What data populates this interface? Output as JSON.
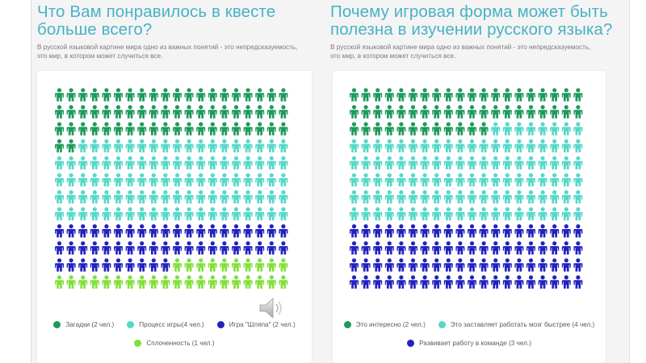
{
  "left": {
    "title": "Что Вам понравилось в квесте больше всего?",
    "subtitle": "В русской языковой картине мира одно из важных понятий - это непредсказуемость, это мир, в котором может случиться все."
  },
  "right": {
    "title": "Почему игровая форма может быть полезна в изучении русского языка?",
    "subtitle": "В русской языковой картине мира одно из важных понятий - это непредсказуемость, это мир, в котором может случиться все."
  },
  "colors": {
    "dark_green": "#1e9a5c",
    "teal": "#55d8c8",
    "blue": "#2222c0",
    "lime": "#80e038"
  },
  "speaker_icon": "speaker-icon",
  "chart_data": [
    {
      "type": "pictogram",
      "grid": {
        "rows": 12,
        "cols": 20
      },
      "series": [
        {
          "name": "Загадки (2 чел.)",
          "color": "#1e9a5c",
          "count": 62
        },
        {
          "name": "Процесс игры(4 чел.)",
          "color": "#55d8c8",
          "count": 98
        },
        {
          "name": "Игра \"Шляпа\" (2 чел.)",
          "color": "#2222c0",
          "count": 50
        },
        {
          "name": "Сплоченность (1 чел.)",
          "color": "#80e038",
          "count": 30
        }
      ],
      "legend": [
        [
          "Загадки (2 чел.)",
          "Процесс игры(4 чел.)",
          "Игра \"Шляпа\" (2 чел.)"
        ],
        [
          "Сплоченность (1 чел.)"
        ]
      ]
    },
    {
      "type": "pictogram",
      "grid": {
        "rows": 12,
        "cols": 20
      },
      "series": [
        {
          "name": "Это интересно (2 чел.)",
          "color": "#1e9a5c",
          "count": 52
        },
        {
          "name": "Это заставляет работать мозг быстрее (4 чел.)",
          "color": "#55d8c8",
          "count": 108
        },
        {
          "name": "Развивает работу в команде (3 чел.)",
          "color": "#2222c0",
          "count": 80
        }
      ],
      "legend": [
        [
          "Это интересно (2 чел.)",
          "Это заставляет работать мозг быстрее (4 чел.)"
        ],
        [
          "Развивает работу в команде (3 чел.)"
        ]
      ]
    }
  ]
}
